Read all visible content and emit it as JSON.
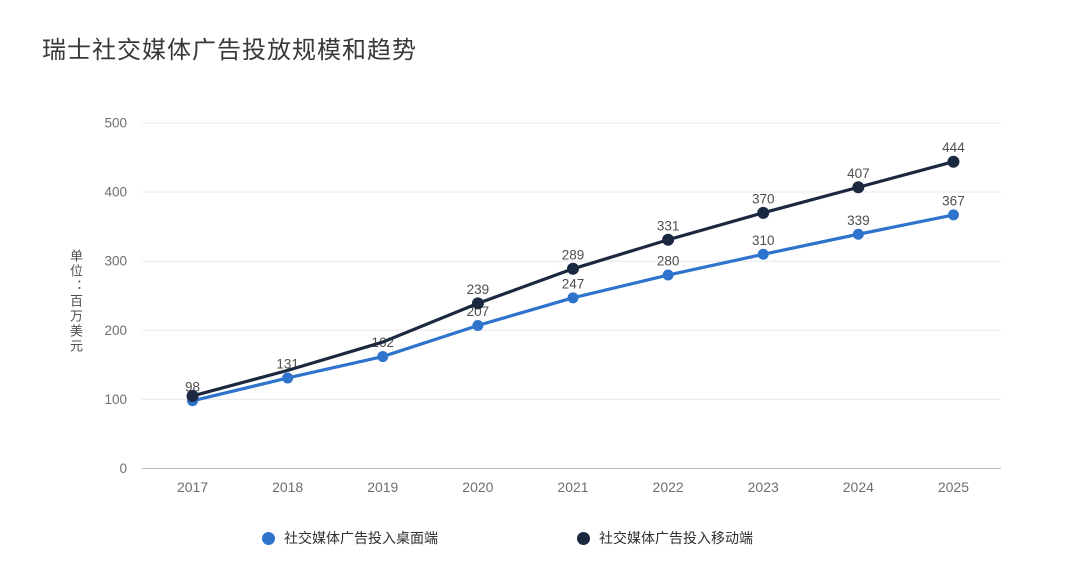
{
  "page_title": "瑞士社交媒体广告投放规模和趋势",
  "chart_data": {
    "type": "line",
    "title": "瑞士社交媒体广告投放规模和趋势",
    "xlabel": "",
    "ylabel": "单位：百万美元",
    "categories": [
      "2017",
      "2018",
      "2019",
      "2020",
      "2021",
      "2022",
      "2023",
      "2024",
      "2025"
    ],
    "series": [
      {
        "name": "社交媒体广告投入桌面端",
        "color": "#2E74CC",
        "values": [
          98,
          131,
          162,
          207,
          247,
          280,
          310,
          339,
          367
        ],
        "labels_shown": [
          98,
          131,
          162,
          207,
          247,
          280,
          310,
          339,
          367
        ],
        "first_label_index": 0,
        "hidden_marker_indices": [],
        "marker_radius": 5.5
      },
      {
        "name": "社交媒体广告投入移动端",
        "color": "#1B2940",
        "values": [
          105,
          142,
          183,
          239,
          289,
          331,
          370,
          407,
          444
        ],
        "labels_shown": [
          239,
          289,
          331,
          370,
          407,
          444
        ],
        "first_label_index": 3,
        "hidden_marker_indices": [
          1,
          2
        ],
        "estimated_indices": [
          0,
          1,
          2
        ],
        "marker_radius": 6
      }
    ],
    "ylim": [
      0,
      500
    ],
    "yticks": [
      0,
      100,
      200,
      300,
      400,
      500
    ],
    "grid": true,
    "legend_position": "bottom"
  },
  "colors": {
    "background": "#ffffff",
    "grid": "#e9e9e9",
    "axis": "#b5b9bd",
    "tick_text": "#6f6f6f",
    "data_label": "#4f4f4f",
    "title": "#383838",
    "legend_text": "#2f2f2f"
  }
}
